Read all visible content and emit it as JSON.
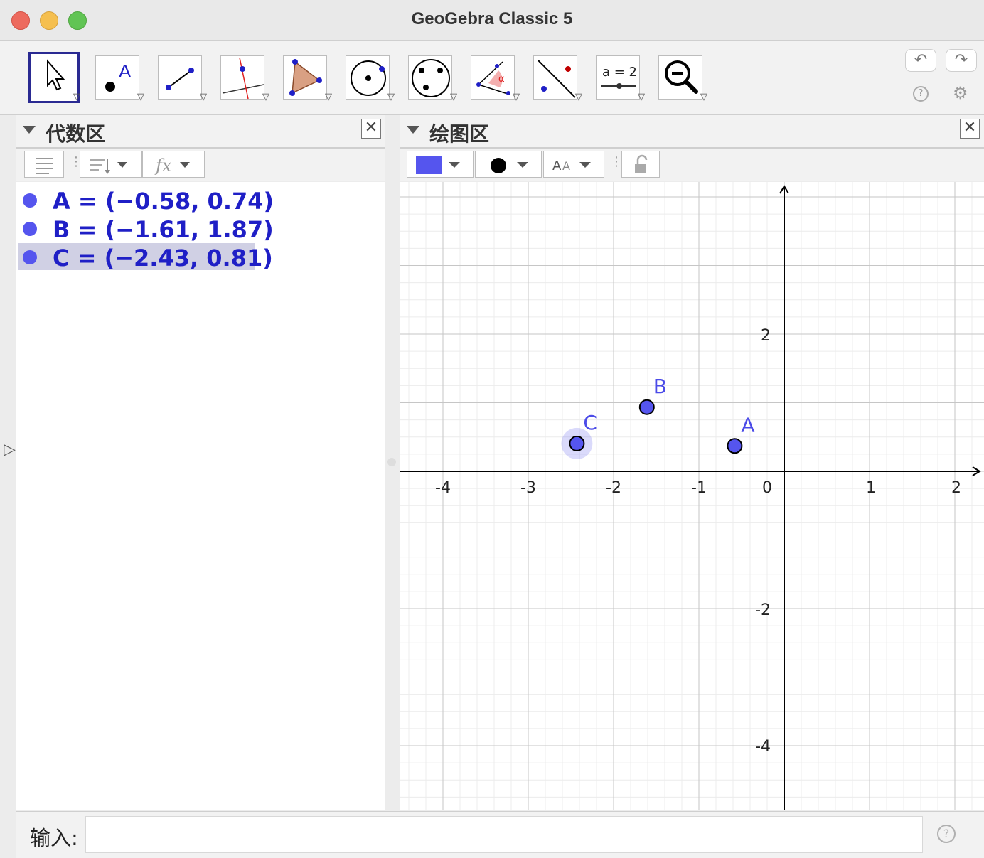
{
  "window": {
    "title": "GeoGebra Classic 5"
  },
  "toolbar": {
    "tools": [
      {
        "name": "move-tool",
        "label": ""
      },
      {
        "name": "point-tool",
        "label": "A"
      },
      {
        "name": "segment-tool",
        "label": ""
      },
      {
        "name": "perpendicular-line-tool",
        "label": ""
      },
      {
        "name": "polygon-tool",
        "label": ""
      },
      {
        "name": "circle-tool",
        "label": ""
      },
      {
        "name": "conic-tool",
        "label": ""
      },
      {
        "name": "angle-tool",
        "label": "α"
      },
      {
        "name": "reflect-tool",
        "label": ""
      },
      {
        "name": "slider-tool",
        "label": "a = 2"
      },
      {
        "name": "zoom-out-tool",
        "label": ""
      }
    ],
    "undo_label": "↶",
    "redo_label": "↷",
    "help_label": "?",
    "settings_label": "⚙"
  },
  "algebra_view": {
    "title": "代数区",
    "items": [
      {
        "text": "A = (−0.58, 0.74)",
        "selected": false
      },
      {
        "text": "B = (−1.61, 1.87)",
        "selected": false
      },
      {
        "text": "C = (−2.43, 0.81)",
        "selected": true
      }
    ]
  },
  "graphics_view": {
    "title": "绘图区",
    "point_color": "#5555ee",
    "x_ticks": [
      "-4",
      "-3",
      "-2",
      "-1",
      "0",
      "1",
      "2"
    ],
    "y_ticks": [
      "2",
      "-2",
      "-4"
    ],
    "points": [
      {
        "label": "A",
        "x": -0.58,
        "y": 0.74,
        "selected": false
      },
      {
        "label": "B",
        "x": -1.61,
        "y": 1.87,
        "selected": false
      },
      {
        "label": "C",
        "x": -2.43,
        "y": 0.81,
        "selected": true
      }
    ]
  },
  "input_bar": {
    "label": "输入:",
    "value": "",
    "help": "?"
  }
}
